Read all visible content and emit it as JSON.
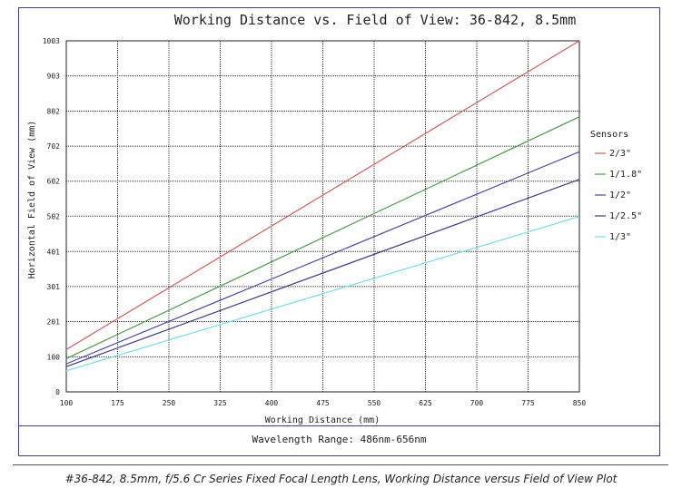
{
  "chart_data": {
    "type": "line",
    "title": "Working Distance vs. Field of View: 36-842, 8.5mm",
    "xlabel": "Working Distance (mm)",
    "ylabel": "Horizontal Field of View (mm)",
    "x_ticks": [
      100,
      175,
      250,
      325,
      400,
      475,
      550,
      625,
      700,
      775,
      850
    ],
    "y_ticks": [
      0,
      100,
      201,
      301,
      401,
      502,
      602,
      702,
      802,
      903,
      1003
    ],
    "xlim": [
      100,
      850
    ],
    "ylim": [
      0,
      1003
    ],
    "grid": true,
    "legend_title": "Sensors",
    "legend_position": "right",
    "x": [
      100,
      850
    ],
    "series": [
      {
        "name": "2/3\"",
        "color": "#d15b5b",
        "values": [
          121,
          1003
        ]
      },
      {
        "name": "1/1.8\"",
        "color": "#4a9a4a",
        "values": [
          95,
          786
        ]
      },
      {
        "name": "1/2\"",
        "color": "#4848a8",
        "values": [
          80,
          686
        ]
      },
      {
        "name": "1/2.5\"",
        "color": "#3a3a8a",
        "values": [
          72,
          607
        ]
      },
      {
        "name": "1/3\"",
        "color": "#6fe0ec",
        "values": [
          60,
          501
        ]
      }
    ]
  },
  "footer": {
    "wavelength": "Wavelength Range: 486nm-656nm"
  },
  "caption": "#36-842, 8.5mm, f/5.6 Cr Series Fixed Focal Length Lens, Working Distance versus Field of View Plot"
}
